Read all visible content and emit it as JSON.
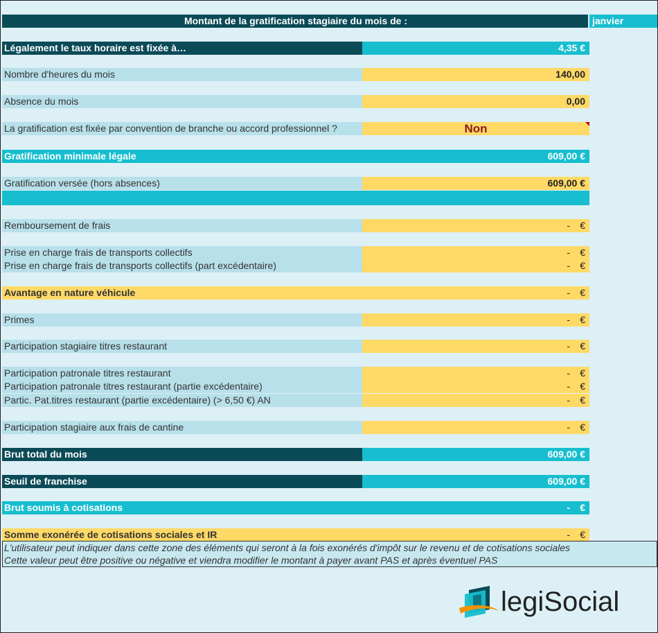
{
  "header": {
    "title": "Montant de la gratification stagiaire du mois de :",
    "month": "janvier"
  },
  "rows": {
    "taux": {
      "label": "Légalement le taux horaire est fixée à…",
      "value": "4,35 €"
    },
    "heures": {
      "label": "Nombre d'heures du mois",
      "value": "140,00"
    },
    "absence": {
      "label": "Absence du mois",
      "value": "0,00"
    },
    "convention": {
      "label": "La gratification est fixée par convention de branche ou accord professionnel ?",
      "value": "Non"
    },
    "minimale": {
      "label": "Gratification minimale légale",
      "value": "609,00 €"
    },
    "versee": {
      "label": "Gratification versée (hors absences)",
      "value": "609,00 €"
    },
    "frais": {
      "label": "Remboursement de frais"
    },
    "transports": {
      "label": "Prise en charge frais de transports collectifs"
    },
    "transports_exc": {
      "label": "Prise en charge frais de transports collectifs (part excédentaire)"
    },
    "vehicule": {
      "label": "Avantage en nature véhicule"
    },
    "primes": {
      "label": "Primes"
    },
    "tr_stagiaire": {
      "label": "Participation stagiaire titres restaurant"
    },
    "tr_patronale": {
      "label": "Participation patronale titres restaurant"
    },
    "tr_patronale_exc": {
      "label": "Participation patronale titres restaurant (partie excédentaire)"
    },
    "tr_partic_an": {
      "label": "Partic. Pat.titres restaurant (partie excédentaire) (> 6,50 €) AN"
    },
    "cantine": {
      "label": "Participation stagiaire aux frais de cantine"
    },
    "brut_total": {
      "label": "Brut total du mois",
      "value": "609,00 €"
    },
    "seuil": {
      "label": "Seuil de franchise",
      "value": "609,00 €"
    },
    "brut_soumis": {
      "label": "Brut soumis à cotisations"
    },
    "somme_exo": {
      "label": "Somme exonérée de cotisations sociales et IR"
    }
  },
  "empty_amount": {
    "dash": "-",
    "currency": "€"
  },
  "note": {
    "line1": "L'utilisateur peut indiquer dans cette zone des éléments qui seront à la fois exonérés d'impôt sur le revenu et de cotisations sociales",
    "line2": "Cette valeur peut être positive ou négative et viendra modifier le montant à payer avant PAS et après éventuel PAS"
  },
  "logo": {
    "part1": "legi",
    "part2": "Social"
  },
  "colors": {
    "dark_teal": "#0b4a57",
    "teal": "#17becf",
    "yellow": "#ffd966",
    "light_blue": "#b8e0ea",
    "non_red": "#8b1a1a",
    "logo_orange": "#f39200"
  }
}
